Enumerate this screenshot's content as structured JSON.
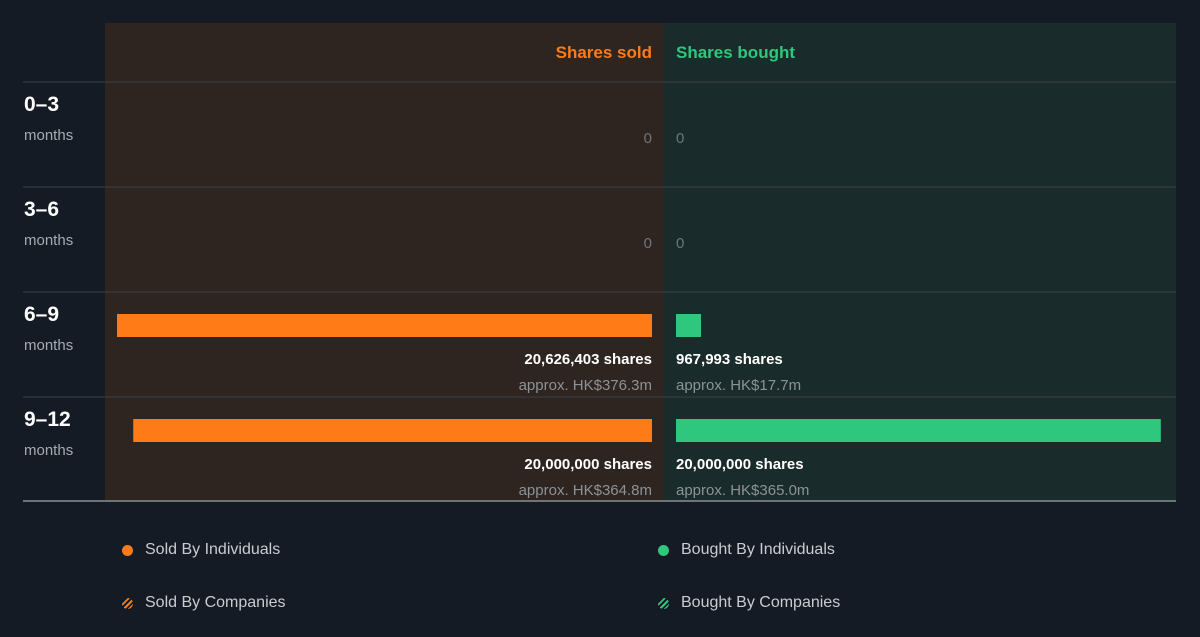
{
  "colors": {
    "sold": "#ff7b17",
    "bought": "#2ec77d",
    "sold_panel": "#2e2420",
    "bought_panel": "#192c2b",
    "background": "#151b24"
  },
  "chart_data": {
    "type": "bar",
    "orientation": "horizontal-diverging",
    "headers": {
      "sold": "Shares sold",
      "bought": "Shares bought"
    },
    "shares_unit": "shares",
    "rows": [
      {
        "range": "0–3",
        "unit": "months",
        "sold_shares": 0,
        "sold_label": "0",
        "sold_value": "",
        "bought_shares": 0,
        "bought_label": "0",
        "bought_value": ""
      },
      {
        "range": "3–6",
        "unit": "months",
        "sold_shares": 0,
        "sold_label": "0",
        "sold_value": "",
        "bought_shares": 0,
        "bought_label": "0",
        "bought_value": ""
      },
      {
        "range": "6–9",
        "unit": "months",
        "sold_shares": 20626403,
        "sold_label": "20,626,403 shares",
        "sold_value": "approx. HK$376.3m",
        "bought_shares": 967993,
        "bought_label": "967,993 shares",
        "bought_value": "approx. HK$17.7m"
      },
      {
        "range": "9–12",
        "unit": "months",
        "sold_shares": 20000000,
        "sold_label": "20,000,000 shares",
        "sold_value": "approx. HK$364.8m",
        "bought_shares": 20000000,
        "bought_label": "20,000,000 shares",
        "bought_value": "approx. HK$365.0m"
      }
    ],
    "max_shares": 20626403
  },
  "legend": [
    {
      "label": "Sold By Individuals",
      "color": "#ff7b17",
      "marker": "dot"
    },
    {
      "label": "Bought By Individuals",
      "color": "#2ec77d",
      "marker": "dot"
    },
    {
      "label": "Sold By Companies",
      "color": "#ff7b17",
      "marker": "hatch"
    },
    {
      "label": "Bought By Companies",
      "color": "#2ec77d",
      "marker": "hatch"
    }
  ]
}
